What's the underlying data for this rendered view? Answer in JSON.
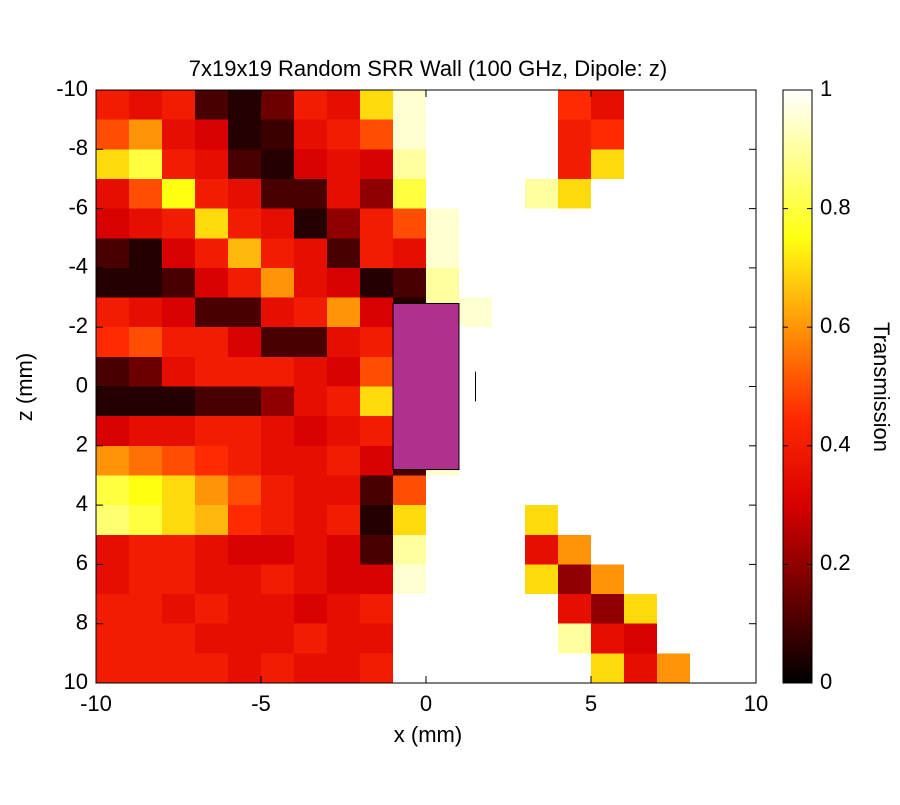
{
  "chart_data": {
    "type": "heatmap",
    "title": "7x19x19 Random SRR Wall (100 GHz, Dipole: z)",
    "x_label": "x (mm)",
    "y_label": "z (mm)",
    "colorbar_label": "Transmission",
    "x": [
      -9.5,
      -8.5,
      -7.5,
      -6.5,
      -5.5,
      -4.5,
      -3.5,
      -2.5,
      -1.5,
      -0.5,
      0.5,
      1.5,
      2.5,
      3.5,
      4.5,
      5.5,
      6.5,
      7.5,
      8.5,
      9.5
    ],
    "y": [
      -9.5,
      -8.5,
      -7.5,
      -6.5,
      -5.5,
      -4.5,
      -3.5,
      -2.5,
      -1.5,
      -0.5,
      0.5,
      1.5,
      2.5,
      3.5,
      4.5,
      5.5,
      6.5,
      7.5,
      8.5,
      9.5
    ],
    "values": [
      [
        0.4,
        0.35,
        0.4,
        0.1,
        0.05,
        0.15,
        0.4,
        0.35,
        0.7,
        0.95,
        1,
        1,
        1,
        1,
        0.45,
        0.35,
        1,
        1,
        1,
        1
      ],
      [
        0.5,
        0.6,
        0.35,
        0.3,
        0.05,
        0.08,
        0.35,
        0.4,
        0.5,
        0.95,
        1,
        1,
        1,
        1,
        0.4,
        0.45,
        1,
        1,
        1,
        1
      ],
      [
        0.7,
        0.8,
        0.4,
        0.35,
        0.1,
        0.05,
        0.3,
        0.35,
        0.3,
        0.9,
        1,
        1,
        1,
        1,
        0.4,
        0.7,
        1,
        1,
        1,
        1
      ],
      [
        0.35,
        0.5,
        0.75,
        0.4,
        0.35,
        0.1,
        0.1,
        0.35,
        0.2,
        0.8,
        1,
        1,
        1,
        0.9,
        0.7,
        1,
        1,
        1,
        1,
        1
      ],
      [
        0.3,
        0.35,
        0.4,
        0.7,
        0.4,
        0.35,
        0.05,
        0.2,
        0.4,
        0.5,
        0.95,
        1,
        1,
        1,
        1,
        1,
        1,
        1,
        1,
        1
      ],
      [
        0.1,
        0.05,
        0.3,
        0.4,
        0.65,
        0.4,
        0.35,
        0.1,
        0.4,
        0.35,
        0.95,
        1,
        1,
        1,
        1,
        1,
        1,
        1,
        1,
        1
      ],
      [
        0.05,
        0.05,
        0.1,
        0.3,
        0.4,
        0.6,
        0.35,
        0.3,
        0.05,
        0.1,
        0.9,
        1,
        1,
        1,
        1,
        1,
        1,
        1,
        1,
        1
      ],
      [
        0.4,
        0.35,
        0.3,
        0.1,
        0.1,
        0.35,
        0.4,
        0.6,
        0.3,
        0.05,
        0.9,
        0.95,
        1,
        1,
        1,
        1,
        1,
        1,
        1,
        1
      ],
      [
        0.45,
        0.5,
        0.4,
        0.4,
        0.3,
        0.1,
        0.1,
        0.35,
        0.4,
        0.1,
        0.95,
        1,
        1,
        1,
        1,
        1,
        1,
        1,
        1,
        1
      ],
      [
        0.1,
        0.15,
        0.35,
        0.4,
        0.4,
        0.4,
        0.35,
        0.3,
        0.5,
        0.85,
        1,
        1,
        1,
        1,
        1,
        1,
        1,
        1,
        1,
        1
      ],
      [
        0.05,
        0.05,
        0.05,
        0.1,
        0.1,
        0.2,
        0.35,
        0.4,
        0.7,
        0.75,
        1,
        1,
        1,
        1,
        1,
        1,
        1,
        1,
        1,
        1
      ],
      [
        0.3,
        0.35,
        0.35,
        0.4,
        0.4,
        0.35,
        0.3,
        0.35,
        0.4,
        0.3,
        1,
        1,
        1,
        1,
        1,
        1,
        1,
        1,
        1,
        1
      ],
      [
        0.6,
        0.55,
        0.5,
        0.45,
        0.4,
        0.35,
        0.35,
        0.4,
        0.3,
        0.1,
        0.95,
        1,
        1,
        1,
        1,
        1,
        1,
        1,
        1,
        1
      ],
      [
        0.8,
        0.75,
        0.7,
        0.6,
        0.5,
        0.4,
        0.35,
        0.35,
        0.1,
        0.5,
        1,
        1,
        1,
        1,
        1,
        1,
        1,
        1,
        1,
        1
      ],
      [
        0.85,
        0.8,
        0.7,
        0.65,
        0.45,
        0.4,
        0.35,
        0.4,
        0.05,
        0.7,
        1,
        1,
        1,
        0.7,
        1,
        1,
        1,
        1,
        1,
        1
      ],
      [
        0.35,
        0.4,
        0.4,
        0.35,
        0.3,
        0.3,
        0.35,
        0.3,
        0.1,
        0.9,
        1,
        1,
        1,
        0.35,
        0.6,
        1,
        1,
        1,
        1,
        1
      ],
      [
        0.35,
        0.4,
        0.4,
        0.35,
        0.35,
        0.4,
        0.35,
        0.3,
        0.3,
        0.95,
        1,
        1,
        1,
        0.7,
        0.2,
        0.6,
        1,
        1,
        1,
        1
      ],
      [
        0.4,
        0.4,
        0.35,
        0.4,
        0.35,
        0.35,
        0.3,
        0.35,
        0.4,
        1,
        1,
        1,
        1,
        1,
        0.35,
        0.2,
        0.7,
        1,
        1,
        1
      ],
      [
        0.4,
        0.4,
        0.4,
        0.35,
        0.35,
        0.35,
        0.4,
        0.35,
        0.35,
        1,
        1,
        1,
        1,
        1,
        0.9,
        0.35,
        0.3,
        1,
        1,
        1
      ],
      [
        0.4,
        0.4,
        0.4,
        0.4,
        0.35,
        0.4,
        0.35,
        0.35,
        0.4,
        1,
        1,
        1,
        1,
        1,
        1,
        0.7,
        0.35,
        0.6,
        1,
        1
      ]
    ],
    "xlim": [
      -10,
      10
    ],
    "ylim": [
      10,
      -10
    ],
    "xticks": [
      -10,
      -5,
      0,
      5,
      10
    ],
    "yticks": [
      -10,
      -8,
      -6,
      -4,
      -2,
      0,
      2,
      4,
      6,
      8,
      10
    ],
    "clim": [
      0,
      1
    ],
    "cticks": [
      0,
      0.2,
      0.4,
      0.6,
      0.8,
      1
    ],
    "colorscale": [
      [
        0,
        "#000000"
      ],
      [
        0.3,
        "#d80000"
      ],
      [
        0.45,
        "#ff2a00"
      ],
      [
        0.75,
        "#ffff10"
      ],
      [
        1,
        "#ffffff"
      ]
    ],
    "wall": {
      "x": [
        -1,
        1
      ],
      "y": [
        -2.8,
        2.8
      ],
      "color": "#b0308e"
    },
    "dipole": {
      "x": 1.5,
      "y": [
        -0.5,
        0.5
      ]
    }
  }
}
